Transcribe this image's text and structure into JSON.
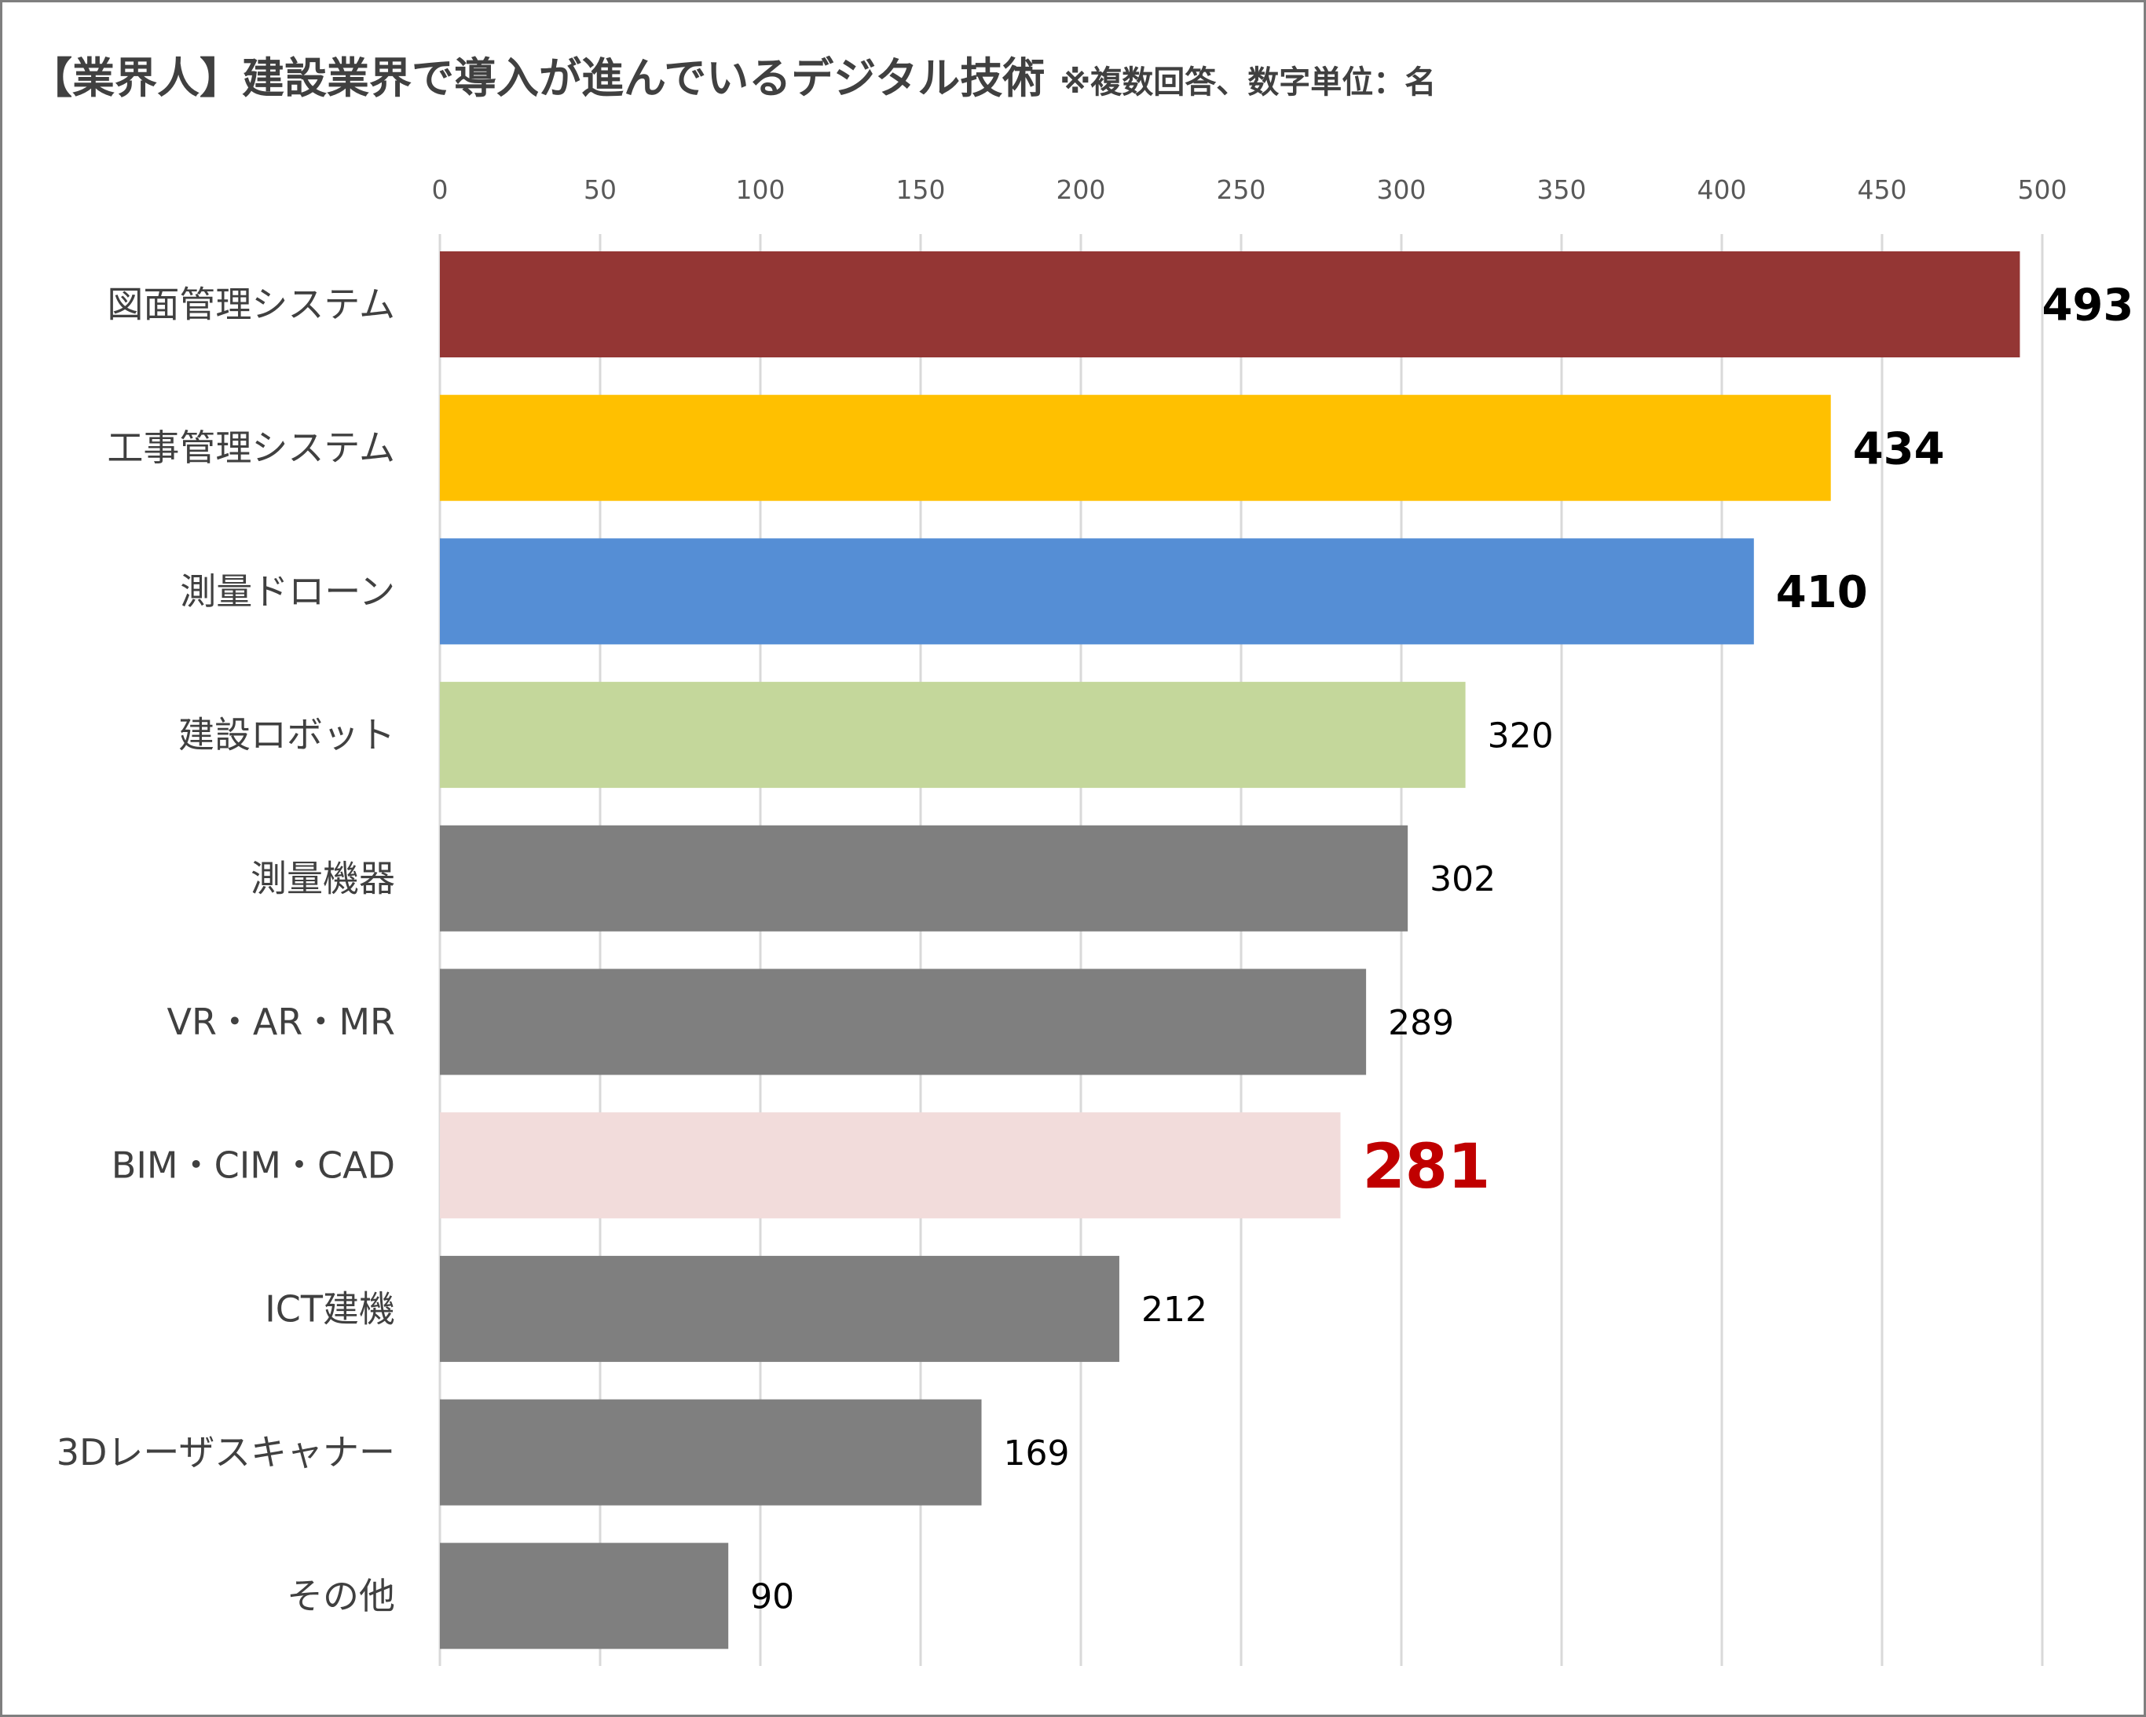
{
  "chart_data": {
    "type": "bar",
    "orientation": "horizontal",
    "title": "【業界人】建設業界で導入が進んでいるデジタル技術",
    "subtitle": "※複数回答、数字単位：名",
    "xlabel": "",
    "ylabel": "",
    "xlim": [
      0,
      500
    ],
    "ticks": [
      0,
      50,
      100,
      150,
      200,
      250,
      300,
      350,
      400,
      450,
      500
    ],
    "tick_labels": [
      "0",
      "50",
      "100",
      "150",
      "200",
      "250",
      "300",
      "350",
      "400",
      "450",
      "500"
    ],
    "axis_position": "top",
    "grid": true,
    "legend": "none",
    "categories": [
      "図面管理システム",
      "工事管理システム",
      "測量ドローン",
      "建設ロボット",
      "測量機器",
      "VR・AR・MR",
      "BIM・CIM・CAD",
      "ICT建機",
      "3Dレーザスキャナー",
      "その他"
    ],
    "values": [
      493,
      434,
      410,
      320,
      302,
      289,
      281,
      212,
      169,
      90
    ],
    "value_labels": [
      "493",
      "434",
      "410",
      "320",
      "302",
      "289",
      "281",
      "212",
      "169",
      "90"
    ],
    "bar_colors": [
      "#943634",
      "#ffc000",
      "#558ed5",
      "#c4d79b",
      "#7f7f7f",
      "#7f7f7f",
      "#f2dcdb",
      "#7f7f7f",
      "#7f7f7f",
      "#7f7f7f"
    ],
    "label_styles": [
      "emphasis",
      "emphasis",
      "emphasis",
      "normal",
      "normal",
      "normal",
      "highlight",
      "normal",
      "normal",
      "normal"
    ],
    "label_colors": {
      "normal": "#000000",
      "emphasis": "#000000",
      "highlight": "#c00000"
    }
  }
}
